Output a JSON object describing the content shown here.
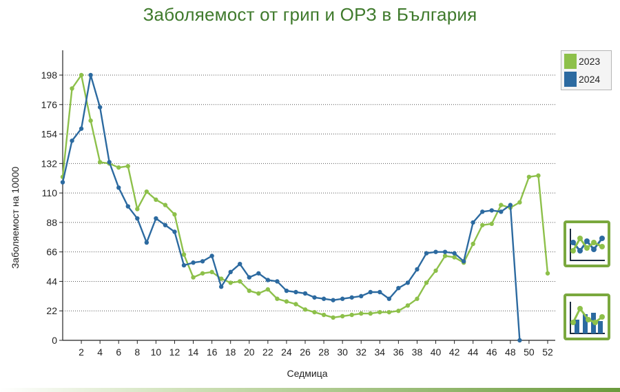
{
  "chart_data": {
    "type": "line",
    "title": "Заболяемост от грип и ОРЗ в България",
    "xlabel": "Седмица",
    "ylabel": "Заболяемост на 10000",
    "xlim": [
      0,
      53
    ],
    "ylim": [
      0,
      198
    ],
    "x_ticks": [
      2,
      4,
      6,
      8,
      10,
      12,
      14,
      16,
      18,
      20,
      22,
      24,
      26,
      28,
      30,
      32,
      34,
      36,
      38,
      40,
      42,
      44,
      46,
      48,
      50,
      52
    ],
    "y_ticks": [
      0,
      22,
      44,
      66,
      88,
      110,
      132,
      154,
      176,
      198
    ],
    "grid": "horizontal-dotted",
    "legend_position": "top-right",
    "series": [
      {
        "name": "2023",
        "color": "#8dc04a",
        "x": [
          0,
          1,
          2,
          3,
          4,
          5,
          6,
          7,
          8,
          9,
          10,
          11,
          12,
          13,
          14,
          15,
          16,
          17,
          18,
          19,
          20,
          21,
          22,
          23,
          24,
          25,
          26,
          27,
          28,
          29,
          30,
          31,
          32,
          33,
          34,
          35,
          36,
          37,
          38,
          39,
          40,
          41,
          42,
          43,
          44,
          45,
          46,
          47,
          48,
          49,
          50,
          51,
          52
        ],
        "values": [
          122,
          188,
          198,
          164,
          133,
          132,
          129,
          130,
          98,
          111,
          105,
          101,
          94,
          64,
          47,
          50,
          51,
          46,
          43,
          44,
          37,
          35,
          38,
          31,
          29,
          27,
          23,
          21,
          19,
          17,
          18,
          19,
          20,
          20,
          21,
          21,
          22,
          26,
          31,
          43,
          52,
          63,
          62,
          58,
          72,
          86,
          87,
          101,
          99,
          103,
          122,
          123,
          50
        ]
      },
      {
        "name": "2024",
        "color": "#2c6aa0",
        "x": [
          0,
          1,
          2,
          3,
          4,
          5,
          6,
          7,
          8,
          9,
          10,
          11,
          12,
          13,
          14,
          15,
          16,
          17,
          18,
          19,
          20,
          21,
          22,
          23,
          24,
          25,
          26,
          27,
          28,
          29,
          30,
          31,
          32,
          33,
          34,
          35,
          36,
          37,
          38,
          39,
          40,
          41,
          42,
          43,
          44,
          45,
          46,
          47,
          48,
          49
        ],
        "values": [
          118,
          149,
          158,
          198,
          174,
          133,
          114,
          100,
          91,
          73,
          91,
          86,
          81,
          56,
          58,
          59,
          63,
          40,
          51,
          57,
          47,
          50,
          45,
          44,
          37,
          36,
          35,
          32,
          31,
          30,
          31,
          32,
          33,
          36,
          36,
          31,
          39,
          43,
          53,
          65,
          66,
          66,
          65,
          59,
          88,
          96,
          97,
          96,
          101,
          0
        ]
      }
    ]
  },
  "legend": {
    "items": [
      {
        "label": "2023",
        "color": "#8dc04a"
      },
      {
        "label": "2024",
        "color": "#2c6aa0"
      }
    ]
  },
  "toolbar": {
    "line_chart_icon": "line-chart-icon",
    "bar_chart_icon": "bar-line-chart-icon"
  }
}
